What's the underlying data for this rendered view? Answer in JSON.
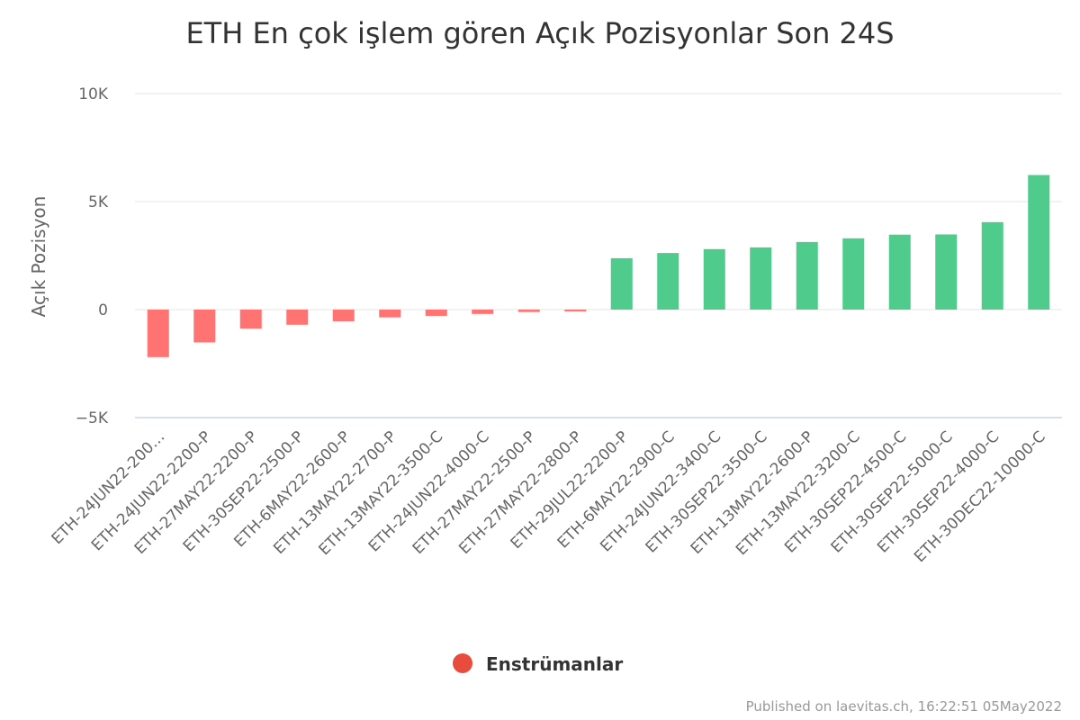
{
  "chart_data": {
    "type": "bar",
    "title": "ETH En çok işlem gören Açık Pozisyonlar Son 24S",
    "ylabel": "Açık Pozisyon",
    "xlabel": "",
    "ylim": [
      -5000,
      10000
    ],
    "yticks": [
      {
        "value": 10000,
        "label": "10K"
      },
      {
        "value": 5000,
        "label": "5K"
      },
      {
        "value": 0,
        "label": "0"
      },
      {
        "value": -5000,
        "label": "−5K"
      }
    ],
    "grid": true,
    "categories": [
      "ETH-24JUN22-200…",
      "ETH-24JUN22-2200-P",
      "ETH-27MAY22-2200-P",
      "ETH-30SEP22-2500-P",
      "ETH-6MAY22-2600-P",
      "ETH-13MAY22-2700-P",
      "ETH-13MAY22-3500-C",
      "ETH-24JUN22-4000-C",
      "ETH-27MAY22-2500-P",
      "ETH-27MAY22-2800-P",
      "ETH-29JUL22-2200-P",
      "ETH-6MAY22-2900-C",
      "ETH-24JUN22-3400-C",
      "ETH-30SEP22-3500-C",
      "ETH-13MAY22-2600-P",
      "ETH-13MAY22-3200-C",
      "ETH-30SEP22-4500-C",
      "ETH-30SEP22-5000-C",
      "ETH-30SEP22-4000-C",
      "ETH-30DEC22-10000-C"
    ],
    "series": [
      {
        "name": "Enstrümanlar",
        "values": [
          -2200,
          -1520,
          -880,
          -700,
          -540,
          -360,
          -290,
          -200,
          -110,
          -90,
          2380,
          2620,
          2800,
          2880,
          3130,
          3300,
          3470,
          3480,
          4050,
          6230
        ]
      }
    ],
    "colors": {
      "positive": "#4fcc8b",
      "negative": "#ff7373",
      "legend_marker": "#e74c3c"
    },
    "legend": {
      "position": "bottom-center"
    },
    "credits": "Published on laevitas.ch, 16:22:51 05May2022"
  }
}
